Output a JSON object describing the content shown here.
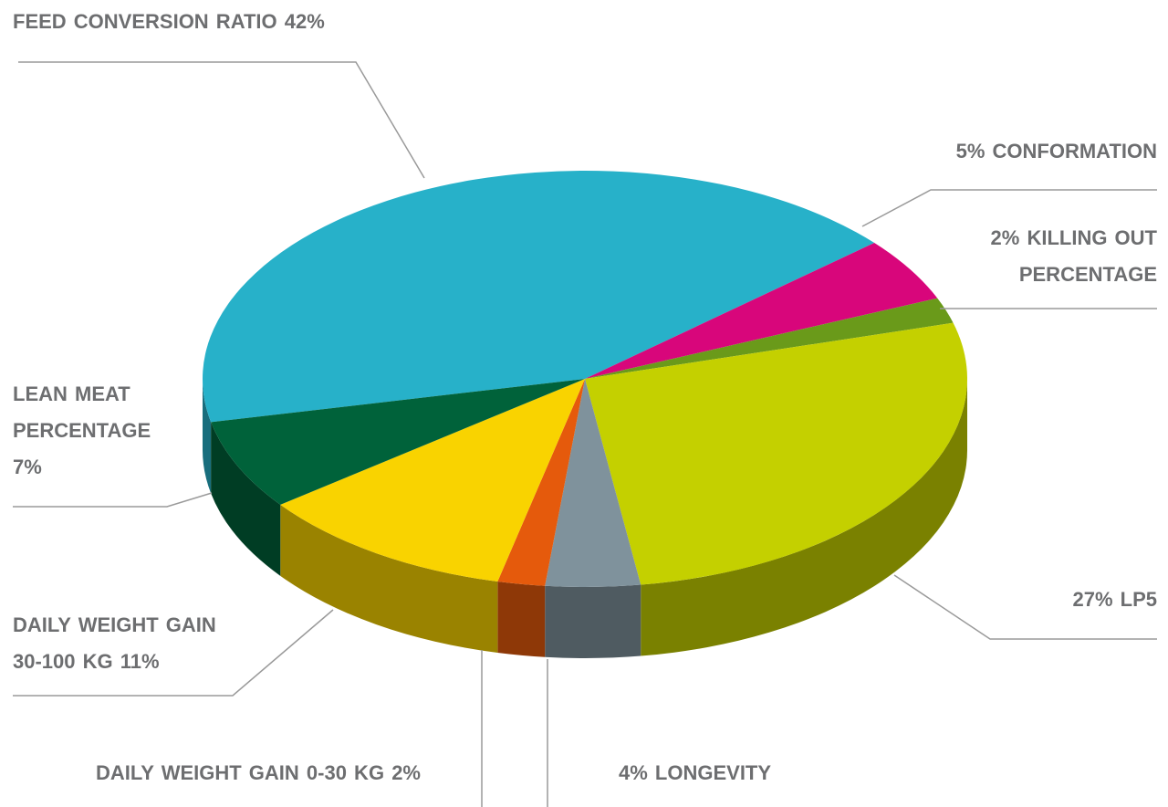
{
  "chart_data": {
    "type": "pie3d",
    "categories": [
      "FEED CONVERSION RATIO",
      "CONFORMATION",
      "KILLING OUT PERCENTAGE",
      "LP5",
      "LONGEVITY",
      "DAILY WEIGHT GAIN 0-30 KG",
      "DAILY WEIGHT GAIN 30-100 KG",
      "LEAN MEAT PERCENTAGE"
    ],
    "values": [
      42,
      5,
      2,
      27,
      4,
      2,
      11,
      7
    ],
    "value_labels": [
      "42%",
      "5%",
      "2%",
      "27%",
      "4%",
      "2%",
      "11%",
      "7%"
    ],
    "colors": [
      "#27b1c9",
      "#d8067b",
      "#6a9a1a",
      "#c4d000",
      "#7f929c",
      "#e55a0c",
      "#f9d300",
      "#00623a"
    ]
  }
}
